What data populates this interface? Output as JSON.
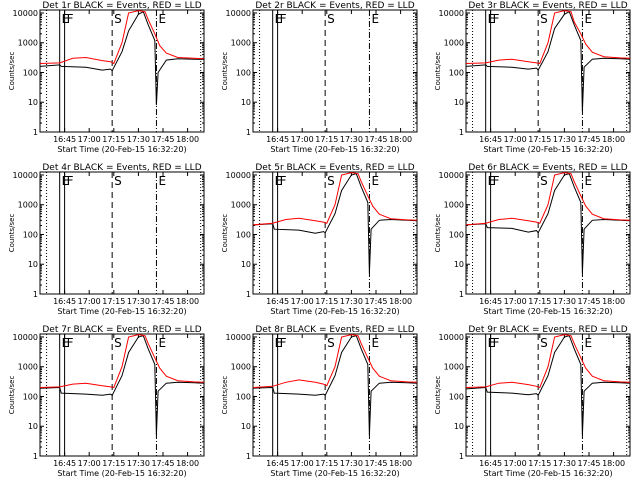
{
  "figure": {
    "x_ticks": [
      "16:45",
      "17:00",
      "17:15",
      "17:30",
      "17:45",
      "18:00"
    ],
    "y_ticks": [
      "1",
      "10",
      "100",
      "1000",
      "10000"
    ],
    "x_range_minutes": [
      -110,
      -10
    ],
    "y_range_log10": [
      0,
      4.1
    ],
    "colors": {
      "events": "#000000",
      "lld": "#ff0000",
      "axes": "#000000"
    }
  },
  "chart_data": [
    {
      "type": "line",
      "title": "Det 1r BLACK = Events, RED = LLD",
      "xlabel": "Start Time (20-Feb-15 16:32:20)",
      "ylabel": "Counts/sec",
      "markers": [
        {
          "label": "E",
          "t": -98,
          "style": "solid"
        },
        {
          "label": "F",
          "t": -95,
          "style": "solid"
        },
        {
          "label": "S",
          "t": -66,
          "style": "dashed"
        },
        {
          "label": "E",
          "t": -39,
          "style": "dashdot"
        }
      ],
      "series": [
        {
          "name": "Events",
          "color": "#000000",
          "x": [
            -110,
            -98,
            -97,
            -82,
            -72,
            -67,
            -66,
            -60,
            -56,
            -50,
            -47,
            -44,
            -40,
            -39,
            -38,
            -33,
            -26,
            -16,
            -10
          ],
          "y": [
            160,
            180,
            160,
            150,
            120,
            130,
            115,
            500,
            2500,
            9000,
            11000,
            4000,
            1200,
            8,
            100,
            260,
            290,
            280,
            275
          ]
        },
        {
          "name": "LLD",
          "color": "#ff0000",
          "x": [
            -110,
            -98,
            -90,
            -82,
            -72,
            -67,
            -65,
            -60,
            -56,
            -50,
            -46,
            -44,
            -40,
            -37,
            -33,
            -26,
            -16,
            -10
          ],
          "y": [
            200,
            210,
            300,
            320,
            250,
            230,
            200,
            1000,
            10000,
            12000,
            11000,
            6000,
            2000,
            800,
            450,
            320,
            300,
            290
          ]
        }
      ]
    },
    {
      "type": "line",
      "title": "Det 2r BLACK = Events, RED = LLD",
      "xlabel": "Start Time (20-Feb-15 16:32:20)",
      "ylabel": "Counts/sec",
      "markers": [
        {
          "label": "E",
          "t": -98,
          "style": "solid"
        },
        {
          "label": "F",
          "t": -95,
          "style": "solid"
        },
        {
          "label": "S",
          "t": -66,
          "style": "dashed"
        },
        {
          "label": "E",
          "t": -39,
          "style": "dashdot"
        }
      ],
      "series": []
    },
    {
      "type": "line",
      "title": "Det 3r BLACK = Events, RED = LLD",
      "xlabel": "Start Time (20-Feb-15 16:32:20)",
      "ylabel": "Counts/sec",
      "markers": [
        {
          "label": "E",
          "t": -98,
          "style": "solid"
        },
        {
          "label": "F",
          "t": -95,
          "style": "solid"
        },
        {
          "label": "S",
          "t": -66,
          "style": "dashed"
        },
        {
          "label": "E",
          "t": -39,
          "style": "dashdot"
        }
      ],
      "series": [
        {
          "name": "Events",
          "color": "#000000",
          "x": [
            -110,
            -98,
            -97,
            -82,
            -72,
            -67,
            -66,
            -60,
            -56,
            -50,
            -47,
            -44,
            -40,
            -39,
            -38,
            -33,
            -26,
            -16,
            -10
          ],
          "y": [
            160,
            180,
            160,
            150,
            130,
            140,
            120,
            500,
            3000,
            9000,
            11000,
            4000,
            1200,
            5,
            150,
            280,
            300,
            290,
            280
          ]
        },
        {
          "name": "LLD",
          "color": "#ff0000",
          "x": [
            -110,
            -98,
            -90,
            -82,
            -72,
            -67,
            -65,
            -60,
            -56,
            -50,
            -46,
            -44,
            -40,
            -37,
            -33,
            -26,
            -16,
            -10
          ],
          "y": [
            200,
            210,
            260,
            280,
            230,
            210,
            200,
            1000,
            10000,
            12000,
            11000,
            5000,
            2000,
            900,
            480,
            340,
            310,
            300
          ]
        }
      ]
    },
    {
      "type": "line",
      "title": "Det 4r BLACK = Events, RED = LLD",
      "xlabel": "Start Time (20-Feb-15 16:32:20)",
      "ylabel": "Counts/sec",
      "markers": [
        {
          "label": "E",
          "t": -98,
          "style": "solid"
        },
        {
          "label": "F",
          "t": -95,
          "style": "solid"
        },
        {
          "label": "S",
          "t": -66,
          "style": "dashed"
        },
        {
          "label": "E",
          "t": -39,
          "style": "dashdot"
        }
      ],
      "series": []
    },
    {
      "type": "line",
      "title": "Det 5r BLACK = Events, RED = LLD",
      "xlabel": "Start Time (20-Feb-15 16:32:20)",
      "ylabel": "Counts/sec",
      "markers": [
        {
          "label": "E",
          "t": -98,
          "style": "solid"
        },
        {
          "label": "F",
          "t": -95,
          "style": "solid"
        },
        {
          "label": "S",
          "t": -66,
          "style": "dashed"
        },
        {
          "label": "E",
          "t": -39,
          "style": "dashdot"
        }
      ],
      "series": [
        {
          "name": "Events",
          "color": "#000000",
          "x": [
            -110,
            -98,
            -97,
            -82,
            -72,
            -67,
            -66,
            -60,
            -56,
            -50,
            -47,
            -44,
            -40,
            -39,
            -38,
            -33,
            -26,
            -16,
            -10
          ],
          "y": [
            210,
            230,
            150,
            140,
            110,
            125,
            115,
            500,
            3000,
            10000,
            11000,
            4000,
            1200,
            5,
            150,
            300,
            320,
            300,
            290
          ]
        },
        {
          "name": "LLD",
          "color": "#ff0000",
          "x": [
            -110,
            -98,
            -90,
            -82,
            -72,
            -67,
            -65,
            -60,
            -56,
            -50,
            -46,
            -44,
            -40,
            -37,
            -33,
            -26,
            -16,
            -10
          ],
          "y": [
            210,
            240,
            320,
            350,
            290,
            260,
            240,
            1000,
            10000,
            12000,
            11000,
            6000,
            2000,
            900,
            480,
            340,
            310,
            300
          ]
        }
      ]
    },
    {
      "type": "line",
      "title": "Det 6r BLACK = Events, RED = LLD",
      "xlabel": "Start Time (20-Feb-15 16:32:20)",
      "ylabel": "Counts/sec",
      "markers": [
        {
          "label": "E",
          "t": -98,
          "style": "solid"
        },
        {
          "label": "F",
          "t": -95,
          "style": "solid"
        },
        {
          "label": "S",
          "t": -66,
          "style": "dashed"
        },
        {
          "label": "E",
          "t": -39,
          "style": "dashdot"
        }
      ],
      "series": [
        {
          "name": "Events",
          "color": "#000000",
          "x": [
            -110,
            -98,
            -97,
            -82,
            -72,
            -67,
            -66,
            -60,
            -56,
            -50,
            -47,
            -44,
            -40,
            -39,
            -38,
            -33,
            -26,
            -16,
            -10
          ],
          "y": [
            210,
            230,
            170,
            160,
            120,
            135,
            115,
            500,
            3000,
            10000,
            11000,
            4000,
            1200,
            5,
            150,
            300,
            320,
            300,
            290
          ]
        },
        {
          "name": "LLD",
          "color": "#ff0000",
          "x": [
            -110,
            -98,
            -90,
            -82,
            -72,
            -67,
            -65,
            -60,
            -56,
            -50,
            -46,
            -44,
            -40,
            -37,
            -33,
            -26,
            -16,
            -10
          ],
          "y": [
            210,
            240,
            320,
            350,
            290,
            260,
            240,
            1000,
            10000,
            12000,
            11000,
            6000,
            2000,
            900,
            480,
            340,
            310,
            300
          ]
        }
      ]
    },
    {
      "type": "line",
      "title": "Det 7r BLACK = Events, RED = LLD",
      "xlabel": "Start Time (20-Feb-15 16:32:20)",
      "ylabel": "Counts/sec",
      "markers": [
        {
          "label": "E",
          "t": -98,
          "style": "solid"
        },
        {
          "label": "F",
          "t": -95,
          "style": "solid"
        },
        {
          "label": "S",
          "t": -66,
          "style": "dashed"
        },
        {
          "label": "E",
          "t": -39,
          "style": "dashdot"
        }
      ],
      "series": [
        {
          "name": "Events",
          "color": "#000000",
          "x": [
            -110,
            -98,
            -97,
            -82,
            -72,
            -67,
            -66,
            -60,
            -56,
            -50,
            -47,
            -44,
            -40,
            -39,
            -38,
            -33,
            -26,
            -16,
            -10
          ],
          "y": [
            190,
            200,
            130,
            120,
            110,
            120,
            110,
            500,
            3000,
            10000,
            11000,
            4000,
            1200,
            5,
            150,
            280,
            300,
            290,
            280
          ]
        },
        {
          "name": "LLD",
          "color": "#ff0000",
          "x": [
            -110,
            -98,
            -90,
            -82,
            -72,
            -67,
            -65,
            -60,
            -56,
            -50,
            -46,
            -44,
            -40,
            -37,
            -33,
            -26,
            -16,
            -10
          ],
          "y": [
            200,
            210,
            260,
            280,
            230,
            210,
            200,
            1000,
            10000,
            12000,
            11000,
            6000,
            2000,
            900,
            480,
            340,
            310,
            300
          ]
        }
      ]
    },
    {
      "type": "line",
      "title": "Det 8r BLACK = Events, RED = LLD",
      "xlabel": "Start Time (20-Feb-15 16:32:20)",
      "ylabel": "Counts/sec",
      "markers": [
        {
          "label": "E",
          "t": -98,
          "style": "solid"
        },
        {
          "label": "F",
          "t": -95,
          "style": "solid"
        },
        {
          "label": "S",
          "t": -66,
          "style": "dashed"
        },
        {
          "label": "E",
          "t": -39,
          "style": "dashdot"
        }
      ],
      "series": [
        {
          "name": "Events",
          "color": "#000000",
          "x": [
            -110,
            -98,
            -97,
            -82,
            -72,
            -67,
            -66,
            -60,
            -56,
            -50,
            -47,
            -44,
            -40,
            -39,
            -38,
            -33,
            -26,
            -16,
            -10
          ],
          "y": [
            190,
            200,
            130,
            120,
            110,
            120,
            110,
            500,
            3000,
            10000,
            11000,
            4000,
            1200,
            5,
            150,
            280,
            300,
            290,
            280
          ]
        },
        {
          "name": "LLD",
          "color": "#ff0000",
          "x": [
            -110,
            -98,
            -90,
            -82,
            -72,
            -67,
            -65,
            -60,
            -56,
            -50,
            -46,
            -44,
            -40,
            -37,
            -33,
            -26,
            -16,
            -10
          ],
          "y": [
            200,
            220,
            300,
            360,
            300,
            260,
            230,
            1000,
            10000,
            12000,
            11000,
            6000,
            2000,
            900,
            480,
            340,
            310,
            300
          ]
        }
      ]
    },
    {
      "type": "line",
      "title": "Det 9r BLACK = Events, RED = LLD",
      "xlabel": "Start Time (20-Feb-15 16:32:20)",
      "ylabel": "Counts/sec",
      "markers": [
        {
          "label": "E",
          "t": -98,
          "style": "solid"
        },
        {
          "label": "F",
          "t": -95,
          "style": "solid"
        },
        {
          "label": "S",
          "t": -66,
          "style": "dashed"
        },
        {
          "label": "E",
          "t": -39,
          "style": "dashdot"
        }
      ],
      "series": [
        {
          "name": "Events",
          "color": "#000000",
          "x": [
            -110,
            -98,
            -97,
            -82,
            -72,
            -67,
            -66,
            -60,
            -56,
            -50,
            -47,
            -44,
            -40,
            -39,
            -38,
            -33,
            -26,
            -16,
            -10
          ],
          "y": [
            180,
            200,
            140,
            130,
            115,
            125,
            110,
            500,
            3000,
            10000,
            11000,
            4000,
            1200,
            5,
            150,
            280,
            300,
            290,
            280
          ]
        },
        {
          "name": "LLD",
          "color": "#ff0000",
          "x": [
            -110,
            -98,
            -90,
            -82,
            -72,
            -67,
            -65,
            -60,
            -56,
            -50,
            -46,
            -44,
            -40,
            -37,
            -33,
            -26,
            -16,
            -10
          ],
          "y": [
            200,
            210,
            280,
            300,
            250,
            220,
            200,
            1000,
            10000,
            12000,
            11000,
            6000,
            2000,
            900,
            480,
            340,
            310,
            300
          ]
        }
      ]
    }
  ]
}
